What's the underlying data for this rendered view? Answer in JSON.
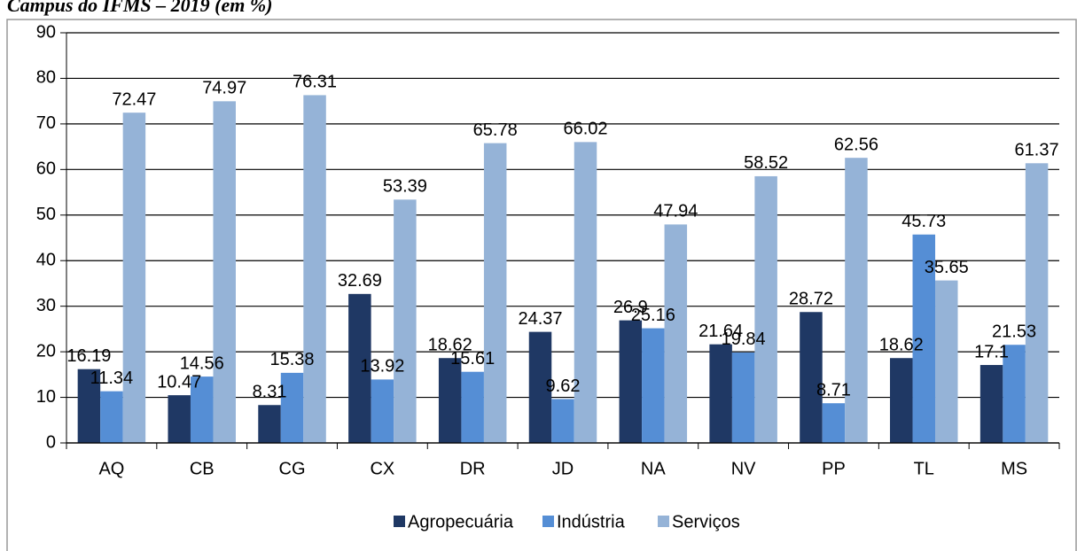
{
  "chart_data": {
    "type": "bar",
    "title": "Campus do IFMS – 2019 (em %)",
    "categories": [
      "AQ",
      "CB",
      "CG",
      "CX",
      "DR",
      "JD",
      "NA",
      "NV",
      "PP",
      "TL",
      "MS"
    ],
    "series": [
      {
        "name": "Agropecuária",
        "color": "#1f3864",
        "values": [
          16.19,
          10.47,
          8.31,
          32.69,
          18.62,
          24.37,
          26.9,
          21.64,
          28.72,
          18.62,
          17.1
        ]
      },
      {
        "name": "Indústria",
        "color": "#558ed5",
        "values": [
          11.34,
          14.56,
          15.38,
          13.92,
          15.61,
          9.62,
          25.16,
          19.84,
          8.71,
          45.73,
          21.53
        ]
      },
      {
        "name": "Serviços",
        "color": "#95b3d7",
        "values": [
          72.47,
          74.97,
          76.31,
          53.39,
          65.78,
          66.02,
          47.94,
          58.52,
          62.56,
          35.65,
          61.37
        ]
      }
    ],
    "value_labels": [
      [
        "16.19",
        "10.47",
        "8.31",
        "32.69",
        "18.62",
        "24.37",
        "26.9",
        "21.64",
        "28.72",
        "18.62",
        "17.1"
      ],
      [
        "11.34",
        "14.56",
        "15.38",
        "13.92",
        "15.61",
        "9.62",
        "25.16",
        "19.84",
        "8.71",
        "45.73",
        "21.53"
      ],
      [
        "72.47",
        "74.97",
        "76.31",
        "53.39",
        "65.78",
        "66.02",
        "47.94",
        "58.52",
        "62.56",
        "35.65",
        "61.37"
      ]
    ],
    "ylim": [
      0,
      90
    ],
    "yticks": [
      0,
      10,
      20,
      30,
      40,
      50,
      60,
      70,
      80,
      90
    ],
    "grid": true,
    "legend": "bottom"
  }
}
